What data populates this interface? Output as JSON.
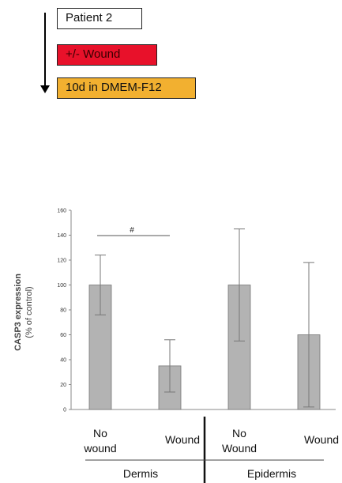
{
  "protocol": {
    "steps": [
      {
        "label": "Patient 2",
        "color": "#ffffff"
      },
      {
        "label": "+/- Wound",
        "color": "#e8112a"
      },
      {
        "label": "10d in DMEM-F12",
        "color": "#f2b030"
      }
    ]
  },
  "chart_data": {
    "type": "bar",
    "title": "",
    "ylabel_line1": "CASP3 expression",
    "ylabel_line2": "(% of control)",
    "ylim": [
      0,
      160
    ],
    "yticks": [
      0,
      20,
      40,
      60,
      80,
      100,
      120,
      140,
      160
    ],
    "categories": [
      {
        "line1": "No",
        "line2": "wound"
      },
      {
        "line1": "Wound",
        "line2": ""
      },
      {
        "line1": "No",
        "line2": "Wound"
      },
      {
        "line1": "Wound",
        "line2": ""
      }
    ],
    "values": [
      100,
      35,
      100,
      60
    ],
    "errors": [
      24,
      21,
      45,
      58
    ],
    "groups": [
      {
        "label": "Dermis",
        "categories": [
          0,
          1
        ]
      },
      {
        "label": "Epidermis",
        "categories": [
          2,
          3
        ]
      }
    ],
    "annotation": {
      "label": "#",
      "between": [
        0,
        1
      ]
    },
    "bar_color": "#b3b3b3"
  }
}
